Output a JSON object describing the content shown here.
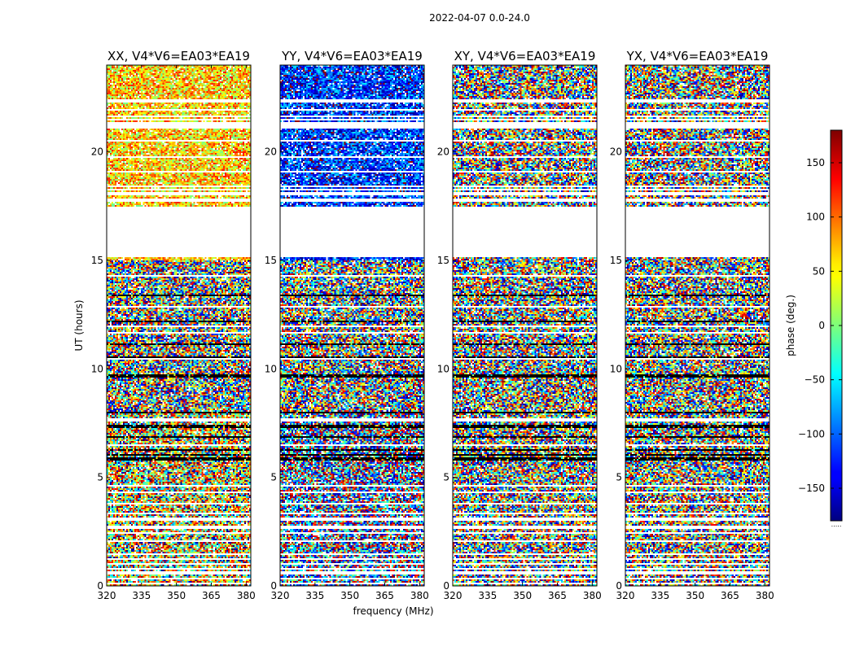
{
  "chart_data": {
    "type": "heatmap",
    "suptitle": "2022-04-07 0.0-24.0",
    "xlabel": "frequency (MHz)",
    "ylabel": "UT (hours)",
    "xlim": [
      320,
      382
    ],
    "ylim": [
      0,
      24
    ],
    "xticks": [
      320,
      335,
      350,
      365,
      380
    ],
    "yticks": [
      0,
      5,
      10,
      15,
      20
    ],
    "colorbar": {
      "label": "phase (deg.)",
      "range": [
        -180,
        180
      ],
      "ticks": [
        150,
        100,
        50,
        0,
        -50,
        -100,
        -150
      ],
      "tick_labels": [
        "150",
        "100",
        "50",
        "0",
        "−50",
        "−100",
        "−150"
      ],
      "colormap": "jet",
      "footer": "....."
    },
    "flagged_ut_ranges": [
      [
        15.15,
        17.5
      ],
      [
        21.05,
        21.35
      ],
      [
        20.45,
        20.55
      ],
      [
        22.25,
        22.45
      ]
    ],
    "panels": [
      {
        "title": "XX, V4*V6=EA03*EA19",
        "polarization": "XX",
        "mean_phase_deg": 60,
        "phase_scatter_deg": 70
      },
      {
        "title": "YY, V4*V6=EA03*EA19",
        "polarization": "YY",
        "mean_phase_deg": -120,
        "phase_scatter_deg": 70
      },
      {
        "title": "XY, V4*V6=EA03*EA19",
        "polarization": "XY",
        "mean_phase_deg": 0,
        "phase_scatter_deg": 180
      },
      {
        "title": "YX, V4*V6=EA03*EA19",
        "polarization": "YX",
        "mean_phase_deg": 0,
        "phase_scatter_deg": 180
      }
    ]
  }
}
